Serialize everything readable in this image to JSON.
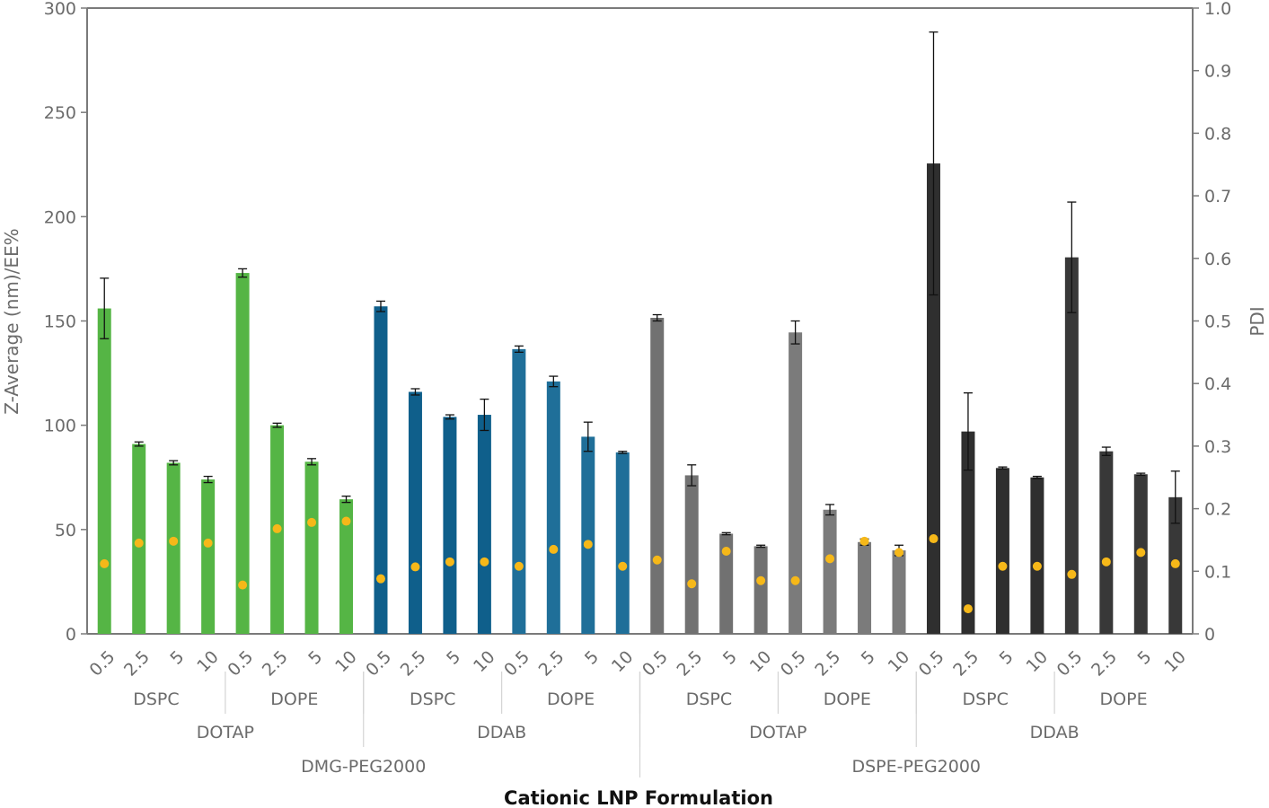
{
  "chart_data": {
    "type": "bar",
    "xlabel": "Cationic LNP Formulation",
    "ylabel": "Z-Average (nm)/EE%",
    "y2label": "PDI",
    "ylim": [
      0,
      300
    ],
    "y2lim": [
      0,
      1.0
    ],
    "yticks": [
      "0",
      "50",
      "100",
      "150",
      "200",
      "250",
      "300"
    ],
    "y2ticks": [
      "0",
      "0.1",
      "0.2",
      "0.3",
      "0.4",
      "0.5",
      "0.6",
      "0.7",
      "0.8",
      "0.9",
      "1.0"
    ],
    "grid": false,
    "categories": [
      "0.5",
      "2.5",
      "5",
      "10",
      "0.5",
      "2.5",
      "5",
      "10",
      "0.5",
      "2.5",
      "5",
      "10",
      "0.5",
      "2.5",
      "5",
      "10",
      "0.5",
      "2.5",
      "5",
      "10",
      "0.5",
      "2.5",
      "5",
      "10",
      "0.5",
      "2.5",
      "5",
      "10",
      "0.5",
      "2.5",
      "5",
      "10"
    ],
    "series": [
      {
        "values": [
          156,
          91,
          82,
          74,
          173,
          100,
          82.5,
          64.5,
          157,
          116,
          104,
          105,
          136.5,
          121,
          94.5,
          87,
          151.5,
          76,
          48,
          42,
          144.5,
          59.5,
          44,
          40,
          225.5,
          97,
          79.5,
          75,
          180.5,
          87.5,
          76.5,
          65.5
        ],
        "errors": [
          14.5,
          1,
          1,
          1.5,
          2,
          1,
          1.5,
          1.5,
          2.5,
          1.5,
          1,
          7.5,
          1.5,
          2.5,
          7,
          0.5,
          1.5,
          5,
          0.5,
          0.5,
          5.5,
          2.5,
          1.5,
          2.5,
          63,
          18.5,
          0.5,
          0.5,
          26.5,
          2,
          0.5,
          12.5
        ]
      },
      {
        "axis": "right",
        "values": [
          0.112,
          0.145,
          0.148,
          0.145,
          0.078,
          0.168,
          0.178,
          0.18,
          0.088,
          0.107,
          0.115,
          0.115,
          0.108,
          0.135,
          0.143,
          0.108,
          0.118,
          0.08,
          0.132,
          0.085,
          0.085,
          0.12,
          0.148,
          0.13,
          0.152,
          0.04,
          0.108,
          0.108,
          0.095,
          0.115,
          0.13,
          0.112
        ]
      }
    ],
    "bar_colors": [
      "#55b545",
      "#55b545",
      "#55b545",
      "#55b545",
      "#55b545",
      "#55b545",
      "#55b545",
      "#55b545",
      "#0f5f8b",
      "#0f5f8b",
      "#0f5f8b",
      "#0f5f8b",
      "#1f6f99",
      "#1f6f99",
      "#1f6f99",
      "#1f6f99",
      "#717171",
      "#717171",
      "#717171",
      "#717171",
      "#7b7b7b",
      "#7b7b7b",
      "#7b7b7b",
      "#7b7b7b",
      "#2f2f2f",
      "#2f2f2f",
      "#2f2f2f",
      "#2f2f2f",
      "#383838",
      "#383838",
      "#383838",
      "#383838"
    ],
    "dot_color": "#f6b819",
    "group_levels": [
      [
        "DSPC",
        "DOPE",
        "DSPC",
        "DOPE",
        "DSPC",
        "DOPE",
        "DSPC",
        "DOPE"
      ],
      [
        "DOTAP",
        "DDAB",
        "DOTAP",
        "DDAB"
      ],
      [
        "DMG-PEG2000",
        "DSPE-PEG2000"
      ]
    ]
  }
}
